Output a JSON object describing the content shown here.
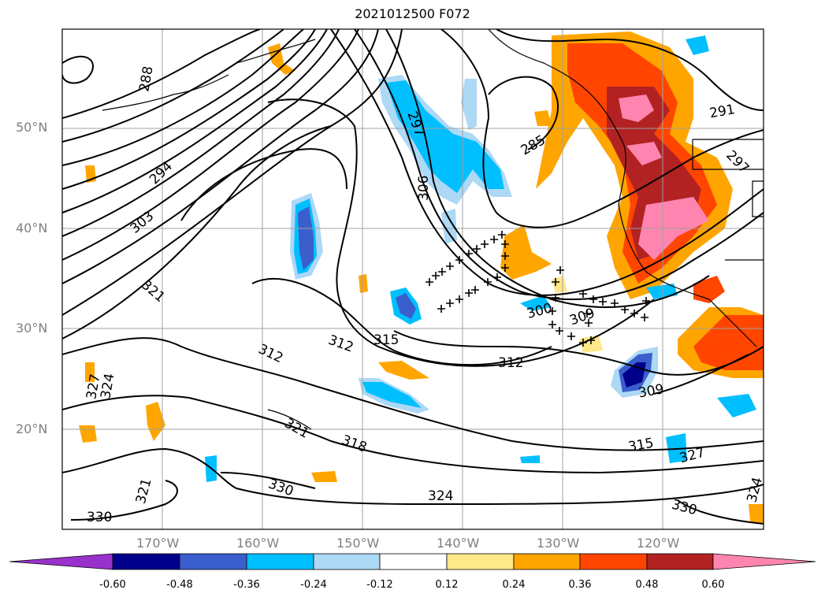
{
  "title": "2021012500 F072",
  "latitude_labels": [
    "50°N",
    "40°N",
    "30°N",
    "20°N"
  ],
  "longitude_labels": [
    "170°W",
    "160°W",
    "150°W",
    "140°W",
    "130°W",
    "120°W"
  ],
  "contour_labels": [
    "288",
    "294",
    "303",
    "321",
    "327",
    "324",
    "321",
    "330",
    "297",
    "306",
    "312",
    "315",
    "312",
    "318",
    "324",
    "330",
    "285",
    "291",
    "297",
    "300",
    "309",
    "312",
    "309",
    "315",
    "327",
    "324",
    "330",
    "321"
  ],
  "colorbar": {
    "ticks": [
      "-0.60",
      "-0.48",
      "-0.36",
      "-0.24",
      "-0.12",
      "0.12",
      "0.24",
      "0.36",
      "0.48",
      "0.60"
    ],
    "colors": [
      "#9932cc",
      "#00008b",
      "#3a5fcd",
      "#00bfff",
      "#add8f6",
      "#ffffff",
      "#ffe88a",
      "#ffa500",
      "#ff4500",
      "#b22222",
      "#ff85b0"
    ],
    "extend": "both"
  },
  "crosses": "black plus markers along frontal band"
}
